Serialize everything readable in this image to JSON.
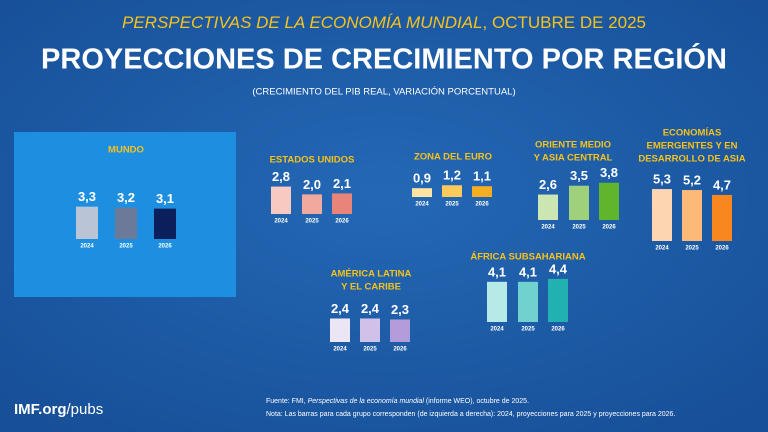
{
  "header": {
    "kicker": [
      "PERSPECTIVAS DE LA ECONOMÍA MUNDIAL",
      ", OCTUBRE DE 2025"
    ],
    "title": "PROYECCIONES DE CRECIMIENTO POR REGIÓN",
    "subtitle": "(CRECIMIENTO DEL PIB REAL, VARIACIÓN PORCENTUAL)"
  },
  "footer": {
    "site": [
      "IMF.org",
      "/pubs"
    ],
    "source": [
      "Fuente: FMI, ",
      "Perspectivas de la economía mundial",
      " (informe WEO), octubre de 2025."
    ],
    "note": "Nota: Las barras para cada grupo corresponden (de izquierda a derecha): 2024, proyecciones para 2025 y proyecciones para 2026."
  },
  "chart_data": [
    {
      "type": "bar",
      "title": [
        "MUNDO"
      ],
      "categories": [
        "2024",
        "2025",
        "2026"
      ],
      "values": [
        3.3,
        3.2,
        3.1
      ],
      "value_labels": [
        "3,3",
        "3,2",
        "3,1"
      ],
      "colors": [
        "#b9c4d6",
        "#6b7a99",
        "#0b1f5c"
      ]
    },
    {
      "type": "bar",
      "title": [
        "ESTADOS UNIDOS"
      ],
      "categories": [
        "2024",
        "2025",
        "2026"
      ],
      "values": [
        2.8,
        2.0,
        2.1
      ],
      "value_labels": [
        "2,8",
        "2,0",
        "2,1"
      ],
      "colors": [
        "#f7c9c1",
        "#f1a99e",
        "#e8847a"
      ]
    },
    {
      "type": "bar",
      "title": [
        "ZONA DEL EURO"
      ],
      "categories": [
        "2024",
        "2025",
        "2026"
      ],
      "values": [
        0.9,
        1.2,
        1.1
      ],
      "value_labels": [
        "0,9",
        "1,2",
        "1,1"
      ],
      "colors": [
        "#fde4a2",
        "#fbca5b",
        "#f5ae22"
      ]
    },
    {
      "type": "bar",
      "title": [
        "ORIENTE MEDIO",
        "Y ASIA CENTRAL"
      ],
      "categories": [
        "2024",
        "2025",
        "2026"
      ],
      "values": [
        2.6,
        3.5,
        3.8
      ],
      "value_labels": [
        "2,6",
        "3,5",
        "3,8"
      ],
      "colors": [
        "#cbe6b2",
        "#9fd07b",
        "#5fb52b"
      ]
    },
    {
      "type": "bar",
      "title": [
        "ECONOMÍAS",
        "EMERGENTES Y EN",
        "DESARROLLO DE ASIA"
      ],
      "categories": [
        "2024",
        "2025",
        "2026"
      ],
      "values": [
        5.3,
        5.2,
        4.7
      ],
      "value_labels": [
        "5,3",
        "5,2",
        "4,7"
      ],
      "colors": [
        "#fdd5b1",
        "#fcb978",
        "#f8871f"
      ]
    },
    {
      "type": "bar",
      "title": [
        "AMÉRICA LATINA",
        "Y EL CARIBE"
      ],
      "categories": [
        "2024",
        "2025",
        "2026"
      ],
      "values": [
        2.4,
        2.4,
        2.3
      ],
      "value_labels": [
        "2,4",
        "2,4",
        "2,3"
      ],
      "colors": [
        "#ebe5f6",
        "#d0c1e9",
        "#b39cd9"
      ]
    },
    {
      "type": "bar",
      "title": [
        "ÁFRICA SUBSAHARIANA"
      ],
      "categories": [
        "2024",
        "2025",
        "2026"
      ],
      "values": [
        4.1,
        4.1,
        4.4
      ],
      "value_labels": [
        "4,1",
        "4,1",
        "4,4"
      ],
      "colors": [
        "#b7e9e7",
        "#70d1ce",
        "#21b1b1"
      ]
    }
  ]
}
